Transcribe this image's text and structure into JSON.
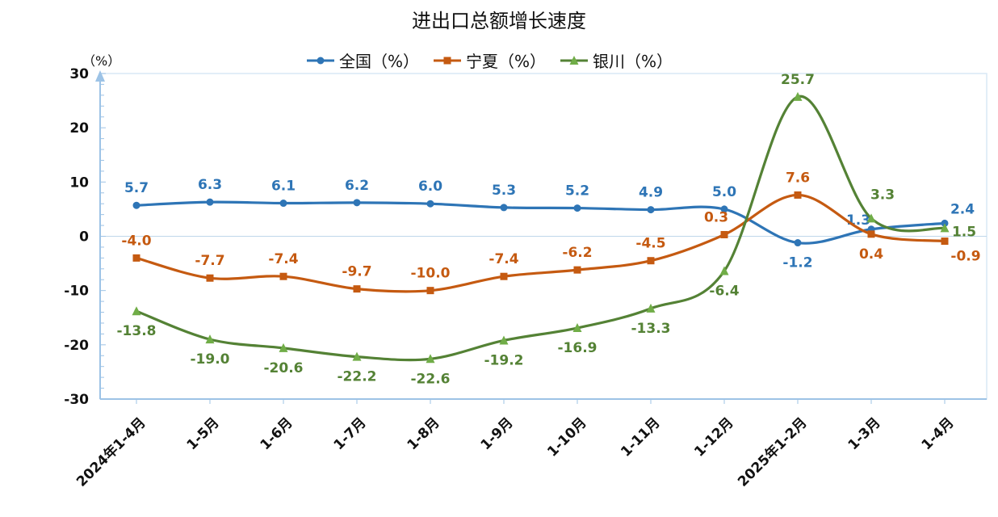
{
  "chart_data": {
    "type": "line",
    "title": "进出口总额增长速度",
    "y_unit": "（%）",
    "ylim": [
      -30,
      30
    ],
    "yticks": [
      30,
      20,
      10,
      0,
      -10,
      -20,
      -30
    ],
    "grid": false,
    "legend_position": "top",
    "categories": [
      "2024年1-4月",
      "1-5月",
      "1-6月",
      "1-7月",
      "1-8月",
      "1-9月",
      "1-10月",
      "1-11月",
      "1-12月",
      "2025年1-2月",
      "1-3月",
      "1-4月"
    ],
    "series": [
      {
        "name": "全国（%）",
        "color": "#2e75b6",
        "marker": "circle",
        "values": [
          5.7,
          6.3,
          6.1,
          6.2,
          6.0,
          5.3,
          5.2,
          4.9,
          5.0,
          -1.2,
          1.3,
          2.4
        ],
        "labels": [
          "5.7",
          "6.3",
          "6.1",
          "6.2",
          "6.0",
          "5.3",
          "5.2",
          "4.9",
          "5.0",
          "-1.2",
          "1.3",
          "2.4"
        ]
      },
      {
        "name": "宁夏（%）",
        "color": "#c55a11",
        "marker": "square",
        "values": [
          -4.0,
          -7.7,
          -7.4,
          -9.7,
          -10.0,
          -7.4,
          -6.2,
          -4.5,
          0.3,
          7.6,
          0.4,
          -0.9
        ],
        "labels": [
          "-4.0",
          "-7.7",
          "-7.4",
          "-9.7",
          "-10.0",
          "-7.4",
          "-6.2",
          "-4.5",
          "0.3",
          "7.6",
          "0.4",
          "-0.9"
        ]
      },
      {
        "name": "银川（%）",
        "color": "#548235",
        "marker": "triangle",
        "values": [
          -13.8,
          -19.0,
          -20.6,
          -22.2,
          -22.6,
          -19.2,
          -16.9,
          -13.3,
          -6.4,
          25.7,
          3.3,
          1.5
        ],
        "labels": [
          "-13.8",
          "-19.0",
          "-20.6",
          "-22.2",
          "-22.6",
          "-19.2",
          "-16.9",
          "-13.3",
          "-6.4",
          "25.7",
          "3.3",
          "1.5"
        ]
      }
    ]
  }
}
